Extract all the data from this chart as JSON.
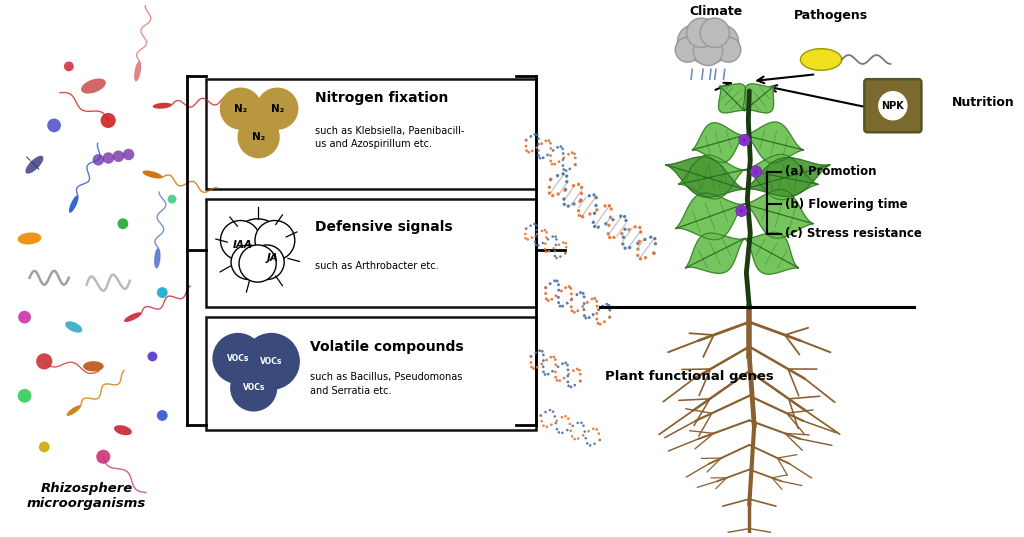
{
  "bg_color": "#ffffff",
  "figsize": [
    10.24,
    5.37
  ],
  "dpi": 100,
  "rhizosphere_label": "Rhizosphere\nmicroorganisms",
  "box1_title": "Nitrogen fixation",
  "box1_sub": "such as Klebsiella, Paenibacill-\nus and Azospirillum etc.",
  "box2_title": "Defensive signals",
  "box2_sub": "such as Arthrobacter etc.",
  "box3_title": "Volatile compounds",
  "box3_sub": "such as Bacillus, Pseudomonas\nand Serratia etc.",
  "plant_label": "Plant functional genes",
  "climate_label": "Climate",
  "pathogens_label": "Pathogens",
  "nutrition_label": "Nutrition",
  "promo_label": "(a) Promotion",
  "flower_label": "(b) Flowering time",
  "stress_label": "(c) Stress resistance",
  "n2_color": "#b8973e",
  "voc_color": "#3a4a7a",
  "dna_blue": "#4a6fa5",
  "dna_orange": "#e07030",
  "dna_grey": "#aaaaaa",
  "box_linecolor": "#111111",
  "npk_color": "#7a6a30",
  "pathogen_color": "#f0e020",
  "plant_green": "#6abf50",
  "plant_green2": "#4a9a35",
  "root_color": "#8b6030",
  "stem_color": "#1a3a10",
  "leaf_dark": "#2a6a20",
  "cloud_color": "#bbbbbb",
  "micro_colors": [
    "#cc5050",
    "#5050cc",
    "#cc9030",
    "#9030cc",
    "#30aacc",
    "#cc3080",
    "#80cc30",
    "#3080cc",
    "#cc6020",
    "#20cc90",
    "#c020c0",
    "#888888",
    "#aaaaaa",
    "#cc4444",
    "#44aacc",
    "#cc3344",
    "#22aacc",
    "#cc4488",
    "#44cc66",
    "#cc7700"
  ]
}
